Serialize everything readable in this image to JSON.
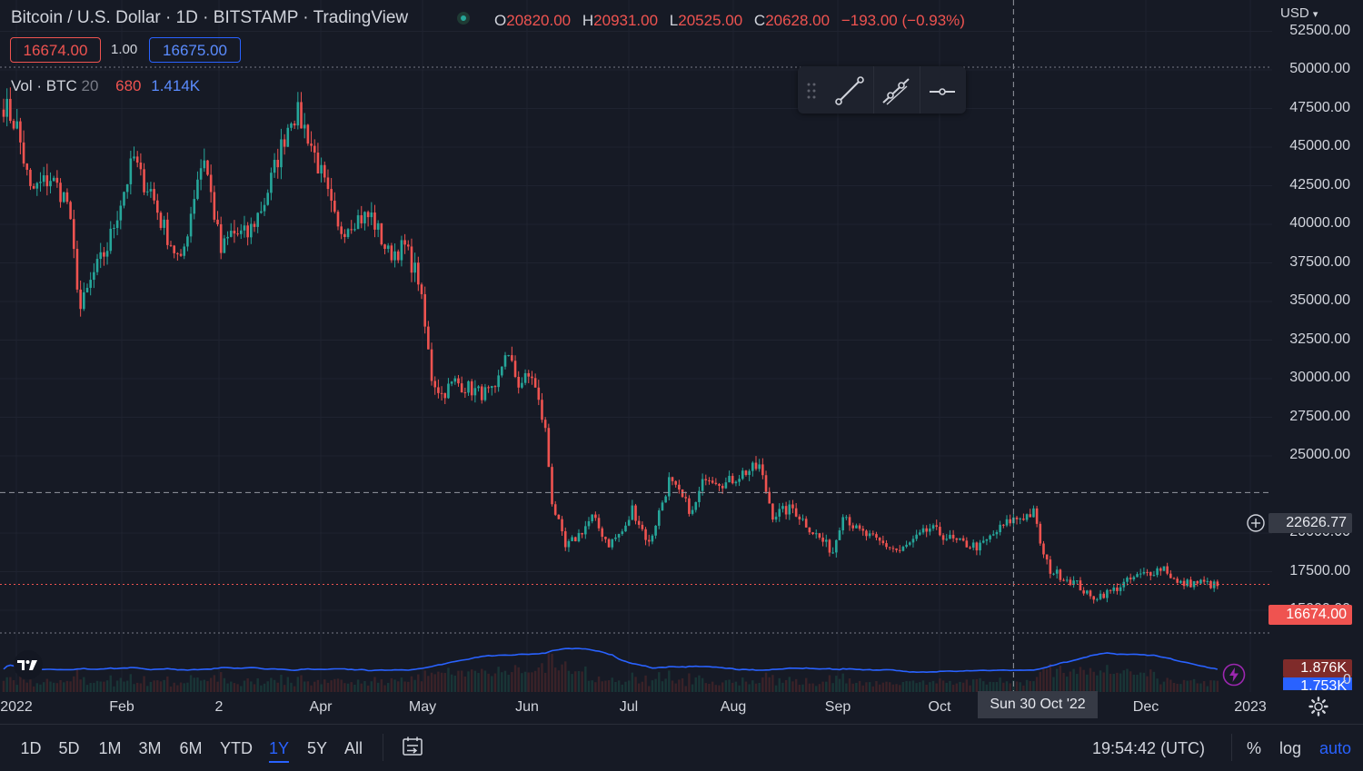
{
  "header": {
    "title": "Bitcoin / U.S. Dollar · 1D · BITSTAMP · TradingView",
    "ohlc": [
      {
        "key": "O",
        "value": "20820.00"
      },
      {
        "key": "H",
        "value": "20931.00"
      },
      {
        "key": "L",
        "value": "20525.00"
      },
      {
        "key": "C",
        "value": "20628.00"
      }
    ],
    "change": "−193.00 (−0.93%)",
    "sell_price": "16674.00",
    "spread": "1.00",
    "buy_price": "16675.00",
    "volume_label": "Vol · BTC",
    "volume_length": "20",
    "volume_value_red": "680",
    "volume_value_blue": "1.414K"
  },
  "colors": {
    "up": "#26a69a",
    "down": "#ef5350",
    "accent": "#2962ff",
    "ma": "#2962ff",
    "background": "#161a25"
  },
  "drawing_toolbar": {
    "icons": [
      "drag-handle-icon",
      "trend-line-icon",
      "ray-icon",
      "horizontal-line-icon"
    ]
  },
  "price_axis": {
    "currency": "USD",
    "labels": [
      "52500.00",
      "50000.00",
      "47500.00",
      "45000.00",
      "42500.00",
      "40000.00",
      "37500.00",
      "35000.00",
      "32500.00",
      "30000.00",
      "27500.00",
      "25000.00",
      "20000.00",
      "17500.00",
      "15000.00"
    ],
    "crosshair_price": "22626.77",
    "last_price": "16674.00",
    "volume_tag_red": "1.876K",
    "volume_tag_blue": "1.753K",
    "volume_zero": "0"
  },
  "time_axis": {
    "labels": [
      "2022",
      "Feb",
      "2",
      "Apr",
      "May",
      "Jun",
      "Jul",
      "Aug",
      "Sep",
      "Oct",
      "Dec",
      "2023"
    ],
    "crosshair_date": "Sun 30 Oct '22"
  },
  "bottom_bar": {
    "ranges": [
      "1D",
      "5D",
      "1M",
      "3M",
      "6M",
      "YTD",
      "1Y",
      "5Y",
      "All"
    ],
    "active_range": "1Y",
    "clock": "19:54:42 (UTC)",
    "percent_label": "%",
    "log_label": "log",
    "auto_label": "auto"
  },
  "chart_data": {
    "type": "candlestick",
    "symbol": "BTCUSD",
    "interval": "1D",
    "y_range": [
      13000,
      54000
    ],
    "x": [
      "2022-01",
      "2022-02",
      "2022-03",
      "2022-04",
      "2022-05",
      "2022-06",
      "2022-07",
      "2022-08",
      "2022-09",
      "2022-10",
      "2022-11",
      "2022-12"
    ],
    "anchors": [
      [
        "2022-01-01",
        47800
      ],
      [
        "2022-01-05",
        46300
      ],
      [
        "2022-01-09",
        42100
      ],
      [
        "2022-01-15",
        43000
      ],
      [
        "2022-01-20",
        41500
      ],
      [
        "2022-01-24",
        34500
      ],
      [
        "2022-01-28",
        36800
      ],
      [
        "2022-02-01",
        38500
      ],
      [
        "2022-02-05",
        41500
      ],
      [
        "2022-02-09",
        44300
      ],
      [
        "2022-02-11",
        43000
      ],
      [
        "2022-02-14",
        42200
      ],
      [
        "2022-02-17",
        40200
      ],
      [
        "2022-02-23",
        37400
      ],
      [
        "2022-02-28",
        43100
      ],
      [
        "2022-03-02",
        44400
      ],
      [
        "2022-03-07",
        38200
      ],
      [
        "2022-03-10",
        39400
      ],
      [
        "2022-03-15",
        39300
      ],
      [
        "2022-03-20",
        41500
      ],
      [
        "2022-03-24",
        44300
      ],
      [
        "2022-03-28",
        47100
      ],
      [
        "2022-03-30",
        47100
      ],
      [
        "2022-04-02",
        45800
      ],
      [
        "2022-04-06",
        43200
      ],
      [
        "2022-04-11",
        39500
      ],
      [
        "2022-04-16",
        40400
      ],
      [
        "2022-04-21",
        40500
      ],
      [
        "2022-04-26",
        38100
      ],
      [
        "2022-05-01",
        38500
      ],
      [
        "2022-05-05",
        36500
      ],
      [
        "2022-05-09",
        30100
      ],
      [
        "2022-05-12",
        29000
      ],
      [
        "2022-05-16",
        29800
      ],
      [
        "2022-05-23",
        29100
      ],
      [
        "2022-05-28",
        29000
      ],
      [
        "2022-05-31",
        31800
      ],
      [
        "2022-06-04",
        29700
      ],
      [
        "2022-06-08",
        30200
      ],
      [
        "2022-06-12",
        26600
      ],
      [
        "2022-06-14",
        22100
      ],
      [
        "2022-06-18",
        19000
      ],
      [
        "2022-06-22",
        19900
      ],
      [
        "2022-06-26",
        21000
      ],
      [
        "2022-07-01",
        19300
      ],
      [
        "2022-07-06",
        20300
      ],
      [
        "2022-07-08",
        21600
      ],
      [
        "2022-07-13",
        19300
      ],
      [
        "2022-07-19",
        23400
      ],
      [
        "2022-07-26",
        21300
      ],
      [
        "2022-07-30",
        23800
      ],
      [
        "2022-08-05",
        23200
      ],
      [
        "2022-08-10",
        23900
      ],
      [
        "2022-08-15",
        24300
      ],
      [
        "2022-08-19",
        21200
      ],
      [
        "2022-08-25",
        21600
      ],
      [
        "2022-08-31",
        20100
      ],
      [
        "2022-09-06",
        18800
      ],
      [
        "2022-09-09",
        21400
      ],
      [
        "2022-09-13",
        20200
      ],
      [
        "2022-09-19",
        19500
      ],
      [
        "2022-09-26",
        18800
      ],
      [
        "2022-10-05",
        20300
      ],
      [
        "2022-10-13",
        19400
      ],
      [
        "2022-10-20",
        19100
      ],
      [
        "2022-10-25",
        20100
      ],
      [
        "2022-10-29",
        20800
      ],
      [
        "2022-11-05",
        21300
      ],
      [
        "2022-11-08",
        18500
      ],
      [
        "2022-11-10",
        17600
      ],
      [
        "2022-11-18",
        16700
      ],
      [
        "2022-11-22",
        15800
      ],
      [
        "2022-11-28",
        16200
      ],
      [
        "2022-12-05",
        17100
      ],
      [
        "2022-12-14",
        17800
      ],
      [
        "2022-12-18",
        16700
      ],
      [
        "2022-12-25",
        16800
      ],
      [
        "2022-12-30",
        16570
      ]
    ],
    "crosshair": {
      "date": "2022-10-30",
      "price": 22626.77
    },
    "volume_ma_length": 20
  }
}
